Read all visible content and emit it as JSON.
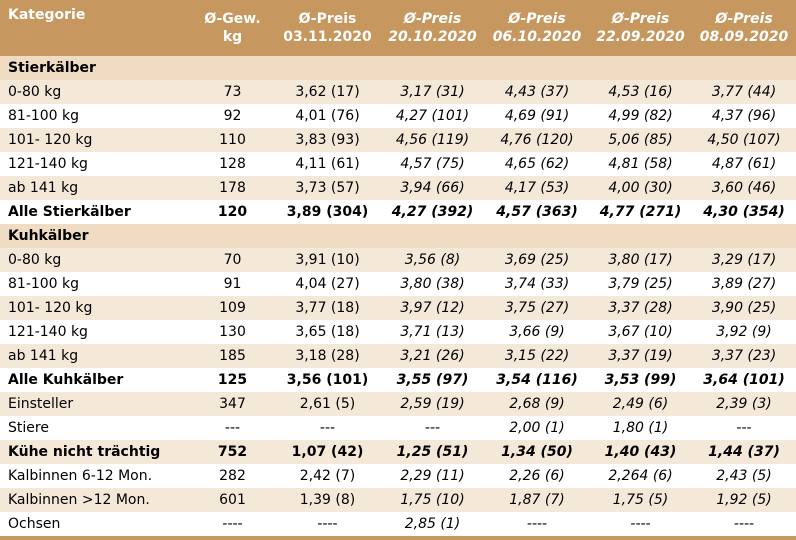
{
  "headers": [
    "Kategorie",
    "Ø-Gew.\nkg",
    "Ø-Preis\n03.11.2020",
    "Ø-Preis\n20.10.2020",
    "Ø-Preis\n06.10.2020",
    "Ø-Preis\n22.09.2020",
    "Ø-Preis\n08.09.2020"
  ],
  "rows": [
    {
      "type": "section",
      "cells": [
        "Stierkälber",
        "",
        "",
        "",
        "",
        "",
        ""
      ]
    },
    {
      "type": "normal",
      "cells": [
        "0-80 kg",
        "73",
        "3,62 (17)",
        "3,17 (31)",
        "4,43 (37)",
        "4,53 (16)",
        "3,77 (44)"
      ]
    },
    {
      "type": "normal",
      "cells": [
        "81-100 kg",
        "92",
        "4,01 (76)",
        "4,27 (101)",
        "4,69 (91)",
        "4,99 (82)",
        "4,37 (96)"
      ]
    },
    {
      "type": "normal",
      "cells": [
        "101- 120 kg",
        "110",
        "3,83 (93)",
        "4,56 (119)",
        "4,76 (120)",
        "5,06 (85)",
        "4,50 (107)"
      ]
    },
    {
      "type": "normal",
      "cells": [
        "121-140 kg",
        "128",
        "4,11 (61)",
        "4,57 (75)",
        "4,65 (62)",
        "4,81 (58)",
        "4,87 (61)"
      ]
    },
    {
      "type": "normal",
      "cells": [
        "ab 141 kg",
        "178",
        "3,73 (57)",
        "3,94 (66)",
        "4,17 (53)",
        "4,00 (30)",
        "3,60 (46)"
      ]
    },
    {
      "type": "bold",
      "cells": [
        "Alle Stierkälber",
        "120",
        "3,89 (304)",
        "4,27 (392)",
        "4,57 (363)",
        "4,77 (271)",
        "4,30 (354)"
      ]
    },
    {
      "type": "section",
      "cells": [
        "Kuhkälber",
        "",
        "",
        "",
        "",
        "",
        ""
      ]
    },
    {
      "type": "normal",
      "cells": [
        "0-80 kg",
        "70",
        "3,91 (10)",
        "3,56 (8)",
        "3,69 (25)",
        "3,80 (17)",
        "3,29 (17)"
      ]
    },
    {
      "type": "normal",
      "cells": [
        "81-100 kg",
        "91",
        "4,04 (27)",
        "3,80 (38)",
        "3,74 (33)",
        "3,79 (25)",
        "3,89 (27)"
      ]
    },
    {
      "type": "normal",
      "cells": [
        "101- 120 kg",
        "109",
        "3,77 (18)",
        "3,97 (12)",
        "3,75 (27)",
        "3,37 (28)",
        "3,90 (25)"
      ]
    },
    {
      "type": "normal",
      "cells": [
        "121-140 kg",
        "130",
        "3,65 (18)",
        "3,71 (13)",
        "3,66 (9)",
        "3,67 (10)",
        "3,92 (9)"
      ]
    },
    {
      "type": "normal",
      "cells": [
        "ab 141 kg",
        "185",
        "3,18 (28)",
        "3,21 (26)",
        "3,15 (22)",
        "3,37 (19)",
        "3,37 (23)"
      ]
    },
    {
      "type": "bold",
      "cells": [
        "Alle Kuhkälber",
        "125",
        "3,56 (101)",
        "3,55 (97)",
        "3,54 (116)",
        "3,53 (99)",
        "3,64 (101)"
      ]
    },
    {
      "type": "normal",
      "cells": [
        "Einsteller",
        "347",
        "2,61 (5)",
        "2,59 (19)",
        "2,68 (9)",
        "2,49 (6)",
        "2,39 (3)"
      ]
    },
    {
      "type": "normal",
      "cells": [
        "Stiere",
        "---",
        "---",
        "---",
        "2,00 (1)",
        "1,80 (1)",
        "---"
      ]
    },
    {
      "type": "bold",
      "cells": [
        "Kühe nicht trächtig",
        "752",
        "1,07 (42)",
        "1,25 (51)",
        "1,34 (50)",
        "1,40 (43)",
        "1,44 (37)"
      ]
    },
    {
      "type": "normal",
      "cells": [
        "Kalbinnen 6-12 Mon.",
        "282",
        "2,42 (7)",
        "2,29 (11)",
        "2,26 (6)",
        "2,264 (6)",
        "2,43 (5)"
      ]
    },
    {
      "type": "normal",
      "cells": [
        "Kalbinnen >12 Mon.",
        "601",
        "1,39 (8)",
        "1,75 (10)",
        "1,87 (7)",
        "1,75 (5)",
        "1,92 (5)"
      ]
    },
    {
      "type": "normal",
      "cells": [
        "Ochsen",
        "----",
        "----",
        "2,85 (1)",
        "----",
        "----",
        "----"
      ]
    }
  ],
  "colors": {
    "header": "#c6975f",
    "band": "#f4e8d8",
    "section": "#efdcc2"
  }
}
